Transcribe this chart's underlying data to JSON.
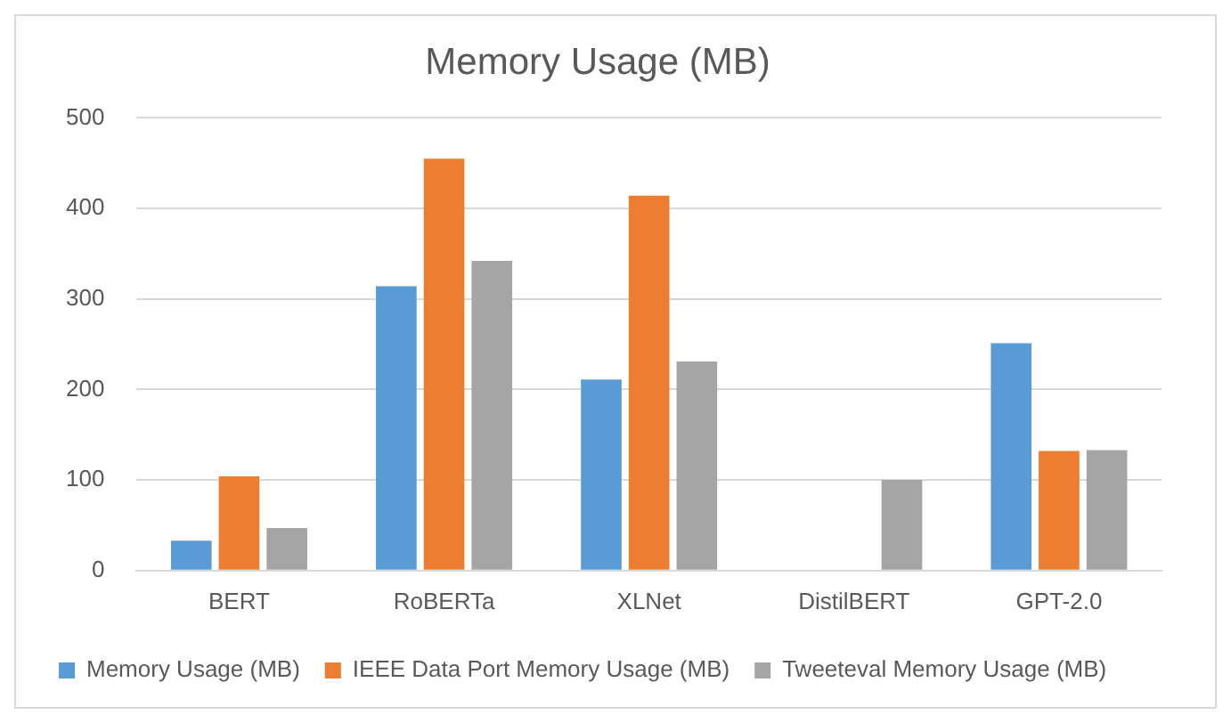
{
  "chart_data": {
    "type": "bar",
    "title": "Memory Usage (MB)",
    "categories": [
      "BERT",
      "RoBERTa",
      "XLNet",
      "DistilBERT",
      "GPT-2.0"
    ],
    "series": [
      {
        "name": "Memory Usage (MB)",
        "color": "#5b9bd5",
        "values": [
          33,
          314,
          211,
          null,
          251
        ]
      },
      {
        "name": "IEEE Data Port Memory Usage (MB)",
        "color": "#ed7d31",
        "values": [
          104,
          455,
          414,
          null,
          132
        ]
      },
      {
        "name": "Tweeteval Memory Usage (MB)",
        "color": "#a5a5a5",
        "values": [
          47,
          342,
          231,
          100,
          133
        ]
      }
    ],
    "ylim": [
      0,
      500
    ],
    "yticks": [
      0,
      100,
      200,
      300,
      400,
      500
    ],
    "grid": "y",
    "legend": "bottom"
  }
}
